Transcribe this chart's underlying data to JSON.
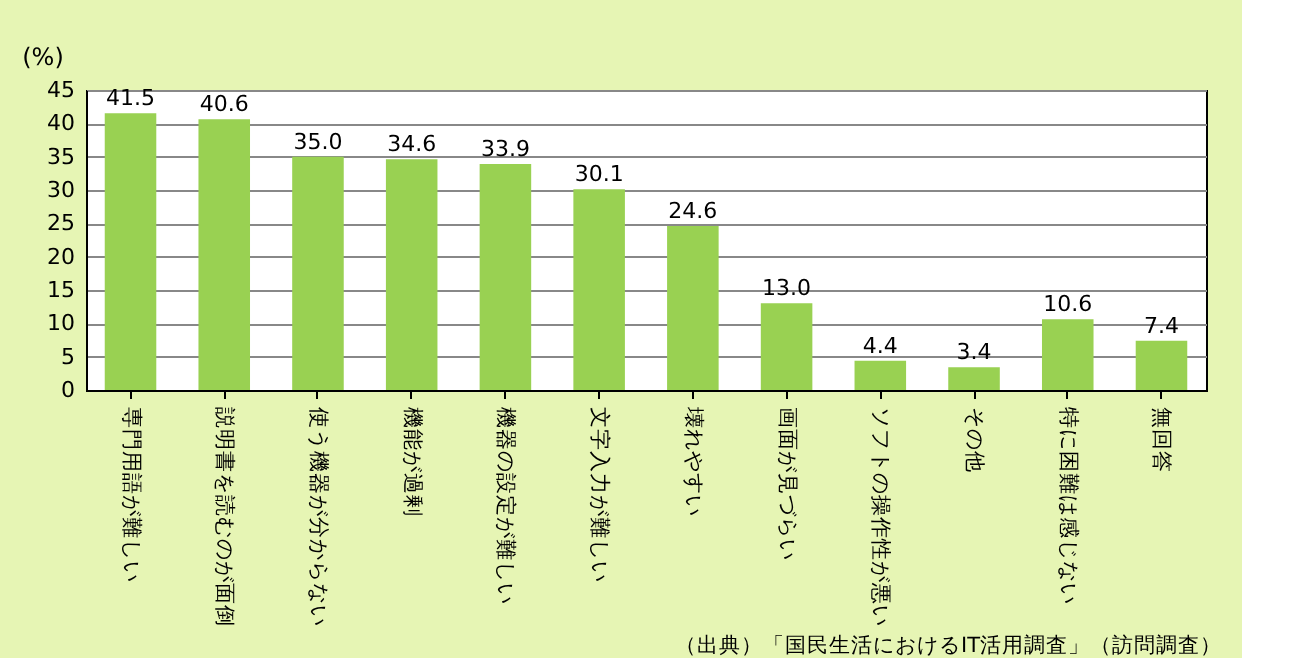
{
  "chart_data": {
    "type": "bar",
    "ylabel": "(%)",
    "categories": [
      "専門用語が難しい",
      "説明書を読むのが面倒",
      "使う機器が分からない",
      "機能が過剰",
      "機器の設定が難しい",
      "文字入力が難しい",
      "壊れやすい",
      "画面が見づらい",
      "ソフトの操作性が悪い",
      "その他",
      "特に困難は感じない",
      "無回答"
    ],
    "values": [
      41.5,
      40.6,
      35.0,
      34.6,
      33.9,
      30.1,
      24.6,
      13.0,
      4.4,
      3.4,
      10.6,
      7.4
    ],
    "color": "#99d152",
    "value_labels": [
      "41.5",
      "40.6",
      "35.0",
      "34.6",
      "33.9",
      "30.1",
      "24.6",
      "13.0",
      "4.4",
      "3.4",
      "10.6",
      "7.4"
    ],
    "ylim": [
      0,
      45
    ],
    "yticks": [
      0,
      5,
      10,
      15,
      20,
      25,
      30,
      35,
      40,
      45
    ],
    "grid": "y",
    "annotations": [
      "（出典）「国民生活におけるIT活用調査」（訪問調査）"
    ]
  }
}
